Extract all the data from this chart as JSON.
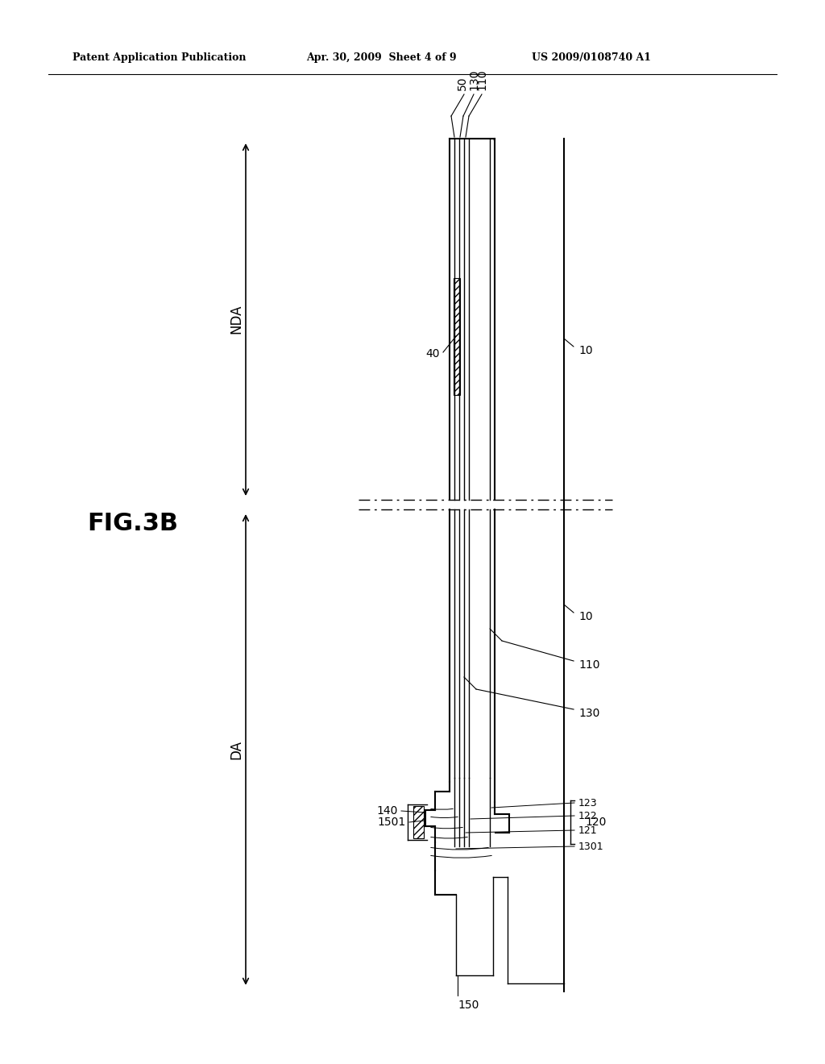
{
  "header_left": "Patent Application Publication",
  "header_mid": "Apr. 30, 2009  Sheet 4 of 9",
  "header_right": "US 2009/0108740 A1",
  "fig_label": "FIG.3B",
  "background": "#ffffff",
  "line_color": "#000000",
  "label_NDA": "NDA",
  "label_DA": "DA",
  "label_50": "50",
  "label_130": "130",
  "label_110": "110",
  "label_40": "40",
  "label_10": "10",
  "label_120": "120",
  "label_121": "121",
  "label_122": "122",
  "label_123": "123",
  "label_1301": "1301",
  "label_140": "140",
  "label_150": "150",
  "label_1501": "1501"
}
